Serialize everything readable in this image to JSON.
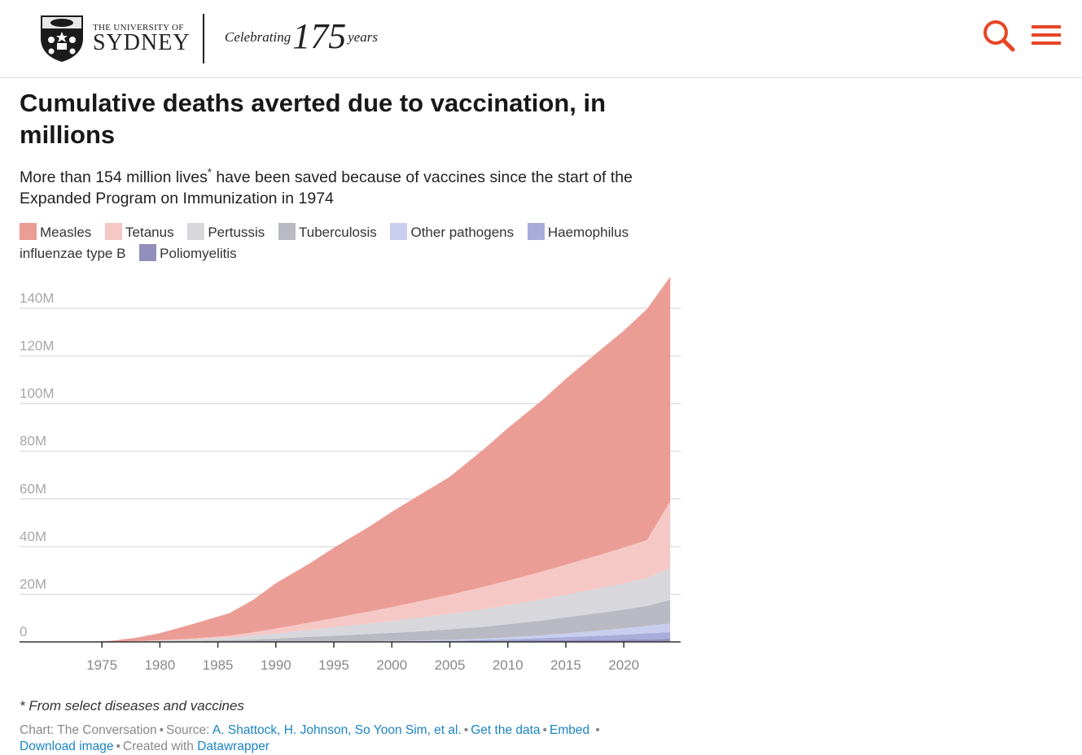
{
  "header": {
    "logo_line1": "THE UNIVERSITY OF",
    "logo_line2": "SYDNEY",
    "celebrating_prefix": "Celebrating",
    "celebrating_number": "175",
    "celebrating_suffix": "years",
    "accent_color": "#e64626"
  },
  "title": "Cumulative deaths averted due to vaccination, in millions",
  "subtitle_before": "More than 154 million lives",
  "subtitle_mark": "*",
  "subtitle_after": " have been saved because of vaccines since the start of the Expanded Program on Immunization in 1974",
  "legend": [
    {
      "label": "Measles",
      "color": "#eb9d95"
    },
    {
      "label": "Tetanus",
      "color": "#f5c8c6"
    },
    {
      "label": "Pertussis",
      "color": "#d7d7dc"
    },
    {
      "label": "Tuberculosis",
      "color": "#b9b9c3"
    },
    {
      "label": "Other pathogens",
      "color": "#c9cdee"
    },
    {
      "label": "Haemophilus influenzae type B",
      "color": "#a9acd9"
    },
    {
      "label": "Poliomyelitis",
      "color": "#9190bd"
    }
  ],
  "note": "* From select diseases and vaccines",
  "footer": {
    "chart_label": "Chart:",
    "chart_by": "The Conversation",
    "source_label": "Source:",
    "source_link": "A. Shattock, H. Johnson, So Yoon Sim, et al.",
    "get_data": "Get the data",
    "embed": "Embed",
    "download": "Download image",
    "created_label": "Created with",
    "created_link": "Datawrapper"
  },
  "chart_data": {
    "type": "area",
    "stacked": true,
    "x": [
      1974,
      1976,
      1978,
      1980,
      1983,
      1986,
      1988,
      1990,
      1993,
      1995,
      1998,
      2000,
      2003,
      2005,
      2008,
      2010,
      2013,
      2015,
      2018,
      2020,
      2022,
      2024
    ],
    "x_ticks": [
      1975,
      1980,
      1985,
      1990,
      1995,
      2000,
      2005,
      2010,
      2015,
      2020
    ],
    "x_tick_labels": [
      "1975",
      "1980",
      "1985",
      "1990",
      "1995",
      "2000",
      "2005",
      "2010",
      "2015",
      "2020"
    ],
    "y_ticks": [
      0,
      20,
      40,
      60,
      80,
      100,
      120,
      140
    ],
    "y_tick_labels": [
      "0",
      "20M",
      "40M",
      "60M",
      "80M",
      "100M",
      "120M",
      "140M"
    ],
    "ylim": [
      0,
      155
    ],
    "xlim": [
      1967.9,
      2024.9
    ],
    "grid": true,
    "series": [
      {
        "name": "Poliomyelitis",
        "color": "#9190bd",
        "values": [
          0,
          0,
          0,
          0,
          0,
          0,
          0,
          0,
          0.05,
          0.1,
          0.15,
          0.2,
          0.3,
          0.4,
          0.5,
          0.6,
          0.7,
          0.8,
          0.9,
          1.0,
          1.1,
          1.2
        ]
      },
      {
        "name": "Haemophilus influenzae type B",
        "color": "#a9acd9",
        "values": [
          0,
          0,
          0,
          0,
          0,
          0,
          0,
          0,
          0,
          0,
          0,
          0,
          0.05,
          0.1,
          0.3,
          0.5,
          0.9,
          1.2,
          1.7,
          2.1,
          2.5,
          2.9
        ]
      },
      {
        "name": "Other pathogens",
        "color": "#c9cdee",
        "values": [
          0,
          0,
          0,
          0,
          0,
          0,
          0,
          0,
          0.05,
          0.1,
          0.15,
          0.2,
          0.3,
          0.4,
          0.6,
          0.8,
          1.2,
          1.6,
          2.2,
          2.6,
          3.1,
          3.6
        ]
      },
      {
        "name": "Tuberculosis",
        "color": "#b9b9c3",
        "values": [
          0,
          0.05,
          0.1,
          0.2,
          0.4,
          0.7,
          1.0,
          1.4,
          2.0,
          2.4,
          3.0,
          3.4,
          4.0,
          4.4,
          5.0,
          5.5,
          6.2,
          6.7,
          7.4,
          7.9,
          8.4,
          9.9
        ]
      },
      {
        "name": "Pertussis",
        "color": "#d7d7dc",
        "values": [
          0,
          0,
          0.1,
          0.3,
          0.6,
          1.1,
          1.6,
          2.2,
          3.0,
          3.6,
          4.4,
          5.0,
          5.9,
          6.5,
          7.4,
          8.0,
          8.9,
          9.5,
          10.4,
          11.0,
          11.6,
          13.4
        ]
      },
      {
        "name": "Tetanus",
        "color": "#f5c8c6",
        "values": [
          0,
          0,
          0.1,
          0.2,
          0.5,
          0.8,
          1.4,
          2.0,
          3.1,
          3.8,
          5.0,
          5.8,
          7.1,
          8.0,
          9.4,
          10.3,
          11.7,
          12.6,
          14.0,
          15.0,
          16.0,
          28.0
        ]
      },
      {
        "name": "Measles",
        "color": "#eb9d95",
        "values": [
          0,
          0.5,
          1.5,
          3.0,
          6.2,
          9.5,
          13.5,
          19.0,
          25.0,
          29.5,
          35.5,
          40.0,
          45.8,
          49.5,
          58.0,
          64.0,
          72.0,
          78.0,
          86.0,
          91.0,
          97.0,
          94.3
        ]
      }
    ]
  }
}
